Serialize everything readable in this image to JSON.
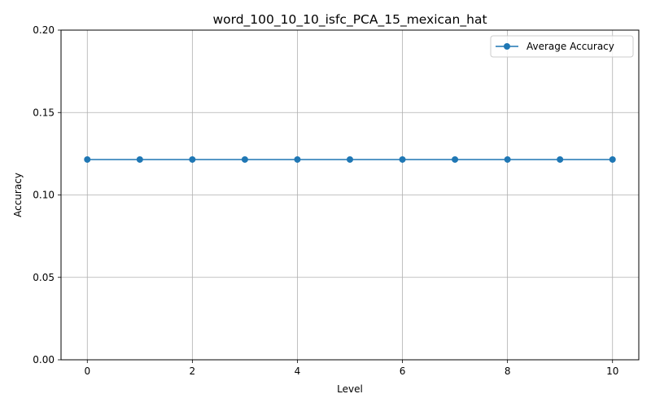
{
  "chart_data": {
    "type": "line",
    "title": "word_100_10_10_isfc_PCA_15_mexican_hat",
    "xlabel": "Level",
    "ylabel": "Accuracy",
    "xlim": [
      -0.5,
      10.5
    ],
    "ylim": [
      0,
      0.2
    ],
    "xticks": [
      0,
      2,
      4,
      6,
      8,
      10
    ],
    "yticks": [
      0.0,
      0.05,
      0.1,
      0.15,
      0.2
    ],
    "ytick_labels": [
      "0.00",
      "0.05",
      "0.10",
      "0.15",
      "0.20"
    ],
    "grid": true,
    "legend_position": "upper right",
    "series": [
      {
        "name": "Average Accuracy",
        "color": "#1f77b4",
        "marker": "circle",
        "x": [
          0,
          1,
          2,
          3,
          4,
          5,
          6,
          7,
          8,
          9,
          10
        ],
        "y": [
          0.1215,
          0.1215,
          0.1215,
          0.1215,
          0.1215,
          0.1215,
          0.1215,
          0.1215,
          0.1215,
          0.1215,
          0.1215
        ]
      }
    ]
  }
}
